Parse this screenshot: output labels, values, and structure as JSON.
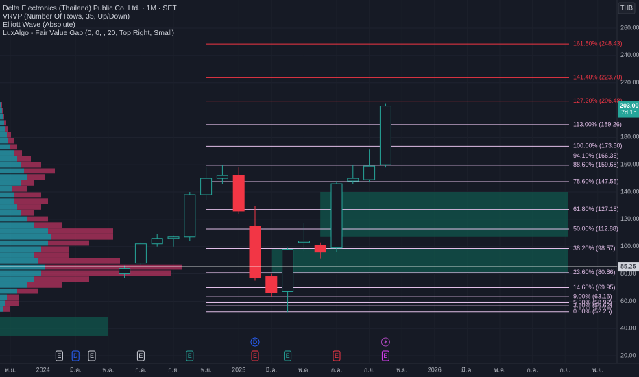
{
  "chart_data": {
    "type": "candlestick",
    "title": "Delta Electronics (Thailand) Public Co. Ltd. · 1M · SET",
    "indicators": [
      "VRVP (Number Of Rows, 35, Up/Down)",
      "Elliott Wave (Absolute)",
      "LuxAlgo - Fair Value Gap (0, 0, , 20, Top Right, Small)"
    ],
    "currency": "THB",
    "categories": [
      "พ.ย.",
      null,
      "2024",
      null,
      "มี.ค.",
      null,
      "พ.ค.",
      null,
      "ก.ค.",
      null,
      "ก.ย.",
      null,
      "พ.ย.",
      null,
      "2025",
      null,
      "มี.ค.",
      null,
      "พ.ค.",
      null,
      "ก.ค.",
      null,
      "ก.ย.",
      null,
      "พ.ย.",
      null,
      "2026",
      null,
      "มี.ค.",
      null,
      "พ.ค.",
      null,
      "ก.ค.",
      null,
      "ก.ย.",
      null,
      "พ.ย."
    ],
    "open": [
      null,
      null,
      null,
      null,
      null,
      null,
      null,
      80,
      88,
      102,
      106,
      107,
      138,
      150,
      152,
      115,
      78,
      67,
      103,
      101,
      99,
      148,
      149,
      160,
      null,
      null,
      null,
      null,
      null,
      null,
      null,
      null,
      null,
      null,
      null,
      null,
      null
    ],
    "high": [
      null,
      null,
      null,
      null,
      null,
      null,
      null,
      86,
      103,
      109,
      108,
      140,
      158,
      160,
      158,
      130,
      80,
      99,
      117,
      103,
      148,
      160,
      171,
      205,
      null,
      null,
      null,
      null,
      null,
      null,
      null,
      null,
      null,
      null,
      null,
      null,
      null
    ],
    "low": [
      null,
      null,
      null,
      null,
      null,
      null,
      null,
      77,
      86,
      100,
      100,
      104,
      134,
      146,
      124,
      75,
      63,
      52,
      97,
      91,
      96,
      146,
      147,
      158,
      null,
      null,
      null,
      null,
      null,
      null,
      null,
      null,
      null,
      null,
      null,
      null,
      null
    ],
    "close": [
      null,
      null,
      null,
      null,
      null,
      null,
      null,
      84,
      102,
      106,
      107,
      138,
      150,
      152,
      126,
      77,
      66,
      98,
      104,
      96,
      146,
      150,
      159,
      203,
      null,
      null,
      null,
      null,
      null,
      null,
      null,
      null,
      null,
      null,
      null,
      null,
      null
    ],
    "up_color": "#26a69a",
    "down_color": "#f23645",
    "ylim": [
      14.5,
      280.6
    ],
    "yticks": [
      {
        "value": 20,
        "label": "20.00"
      },
      {
        "value": 40,
        "label": "40.00"
      },
      {
        "value": 60,
        "label": "60.00"
      },
      {
        "value": 80,
        "label": "80.00"
      },
      {
        "value": 100,
        "label": "100.00"
      },
      {
        "value": 120,
        "label": "120.00"
      },
      {
        "value": 140,
        "label": "140.00"
      },
      {
        "value": 160,
        "label": "160.00"
      },
      {
        "value": 180,
        "label": "180.00"
      },
      {
        "value": 200,
        "label": "200.00"
      },
      {
        "value": 220,
        "label": "220.00"
      },
      {
        "value": 240,
        "label": "240.00"
      },
      {
        "value": 260,
        "label": "260.00"
      }
    ],
    "grid": true,
    "fib_levels": {
      "levels": [
        {
          "value": 248.43,
          "label": "161.80% (248.43)"
        },
        {
          "value": 223.7,
          "label": "141.40% (223.70)"
        },
        {
          "value": 206.48,
          "label": "127.20% (206.48)"
        },
        {
          "value": 189.26,
          "label": "113.00% (189.26)"
        },
        {
          "value": 173.5,
          "label": "100.00% (173.50)"
        },
        {
          "value": 166.35,
          "label": "94.10% (166.35)"
        },
        {
          "value": 159.68,
          "label": "88.60% (159.68)"
        },
        {
          "value": 147.55,
          "label": "78.60% (147.55)"
        },
        {
          "value": 127.18,
          "label": "61.80% (127.18)"
        },
        {
          "value": 112.88,
          "label": "50.00% (112.88)"
        },
        {
          "value": 98.57,
          "label": "38.20% (98.57)"
        },
        {
          "value": 80.86,
          "label": "23.60% (80.86)"
        },
        {
          "value": 69.95,
          "label": "14.60% (69.95)"
        },
        {
          "value": 63.16,
          "label": "9.00% (63.16)"
        },
        {
          "value": 58.92,
          "label": "5.50% (58.92)"
        },
        {
          "value": 56.62,
          "label": "3.60% (56.62)"
        },
        {
          "value": 52.25,
          "label": "0.00% (52.25)"
        }
      ],
      "colors": [
        "#f23645",
        "#f23645",
        "#f23645",
        "#e1bee7",
        "#e1bee7",
        "#e1bee7",
        "#e1bee7",
        "#e1bee7",
        "#e1bee7",
        "#e1bee7",
        "#e1bee7",
        "#e1bee7",
        "#e1bee7",
        "#e1bee7",
        "#e1bee7",
        "#e1bee7",
        "#e1bee7"
      ]
    },
    "fvg_zones": [
      {
        "start": 19,
        "top": 140,
        "bottom": 107
      },
      {
        "start": 16,
        "top": 98.4,
        "bottom": 81
      },
      {
        "start": 0,
        "end": 6,
        "top": 48.6,
        "bottom": 34.6
      }
    ],
    "fvg_color": "#0f5a4e",
    "profile": {
      "bins": [
        52,
        56.4,
        60.8,
        65.2,
        69.6,
        74,
        78.4,
        82.8,
        87.2,
        91.6,
        96,
        100.4,
        104.8,
        109.2,
        113.6,
        118,
        122.4,
        126.8,
        131.2,
        135.6,
        140,
        144.4,
        148.8,
        153.2,
        157.6,
        162,
        166.4,
        170.8,
        175.2,
        179.6,
        184,
        188.4,
        192.8,
        197.2,
        201.6,
        206
      ],
      "up": [
        5,
        8,
        10,
        25,
        40,
        50,
        60,
        65,
        55,
        50,
        60,
        70,
        75,
        70,
        50,
        40,
        30,
        25,
        20,
        20,
        18,
        30,
        40,
        35,
        30,
        25,
        20,
        15,
        12,
        10,
        8,
        6,
        4,
        3,
        2
      ],
      "down": [
        10,
        20,
        18,
        30,
        50,
        80,
        190,
        200,
        120,
        50,
        40,
        60,
        90,
        95,
        40,
        30,
        20,
        35,
        50,
        40,
        22,
        20,
        25,
        45,
        30,
        20,
        12,
        10,
        8,
        6,
        4,
        3,
        2,
        1,
        1
      ],
      "up_color": "#2aa5b8",
      "down_color": "#b8335f"
    },
    "last_price": {
      "value": 203,
      "label": "203.00"
    },
    "countdown": "7d 1h",
    "crosshair": 85.25,
    "events": [
      {
        "index": 3,
        "label": "E",
        "color": "#d1d4dc",
        "row": 0
      },
      {
        "index": 4,
        "label": "D",
        "color": "#2962ff",
        "row": 0
      },
      {
        "index": 5,
        "label": "E",
        "color": "#d1d4dc",
        "row": 0
      },
      {
        "index": 8,
        "label": "E",
        "color": "#d1d4dc",
        "row": 0
      },
      {
        "index": 11,
        "label": "E",
        "color": "#26a69a",
        "row": 0
      },
      {
        "index": 15,
        "label": "E",
        "color": "#f23645",
        "row": 0
      },
      {
        "index": 17,
        "label": "E",
        "color": "#26a69a",
        "row": 0
      },
      {
        "index": 20,
        "label": "E",
        "color": "#f23645",
        "row": 0
      },
      {
        "index": 23,
        "label": "E",
        "color": "#e040fb",
        "row": 0
      },
      {
        "index": 15,
        "label": "D",
        "color": "#2962ff",
        "row": 1
      },
      {
        "index": 23,
        "icon": "flash",
        "color": "#ab47bc",
        "row": 1
      }
    ]
  }
}
